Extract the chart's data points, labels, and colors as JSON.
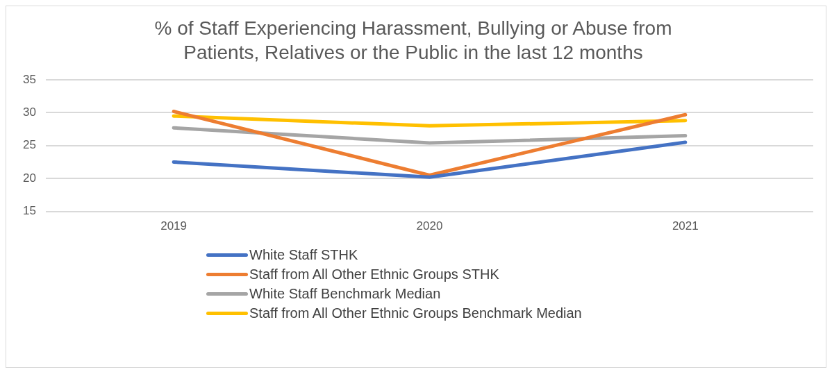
{
  "chart_data": {
    "type": "line",
    "title": "% of Staff Experiencing Harassment, Bullying or Abuse from Patients, Relatives or the Public in the last 12 months",
    "categories": [
      "2019",
      "2020",
      "2021"
    ],
    "series": [
      {
        "name": "White Staff STHK",
        "color": "#4472c4",
        "values": [
          22.5,
          20.2,
          25.5
        ]
      },
      {
        "name": "Staff from All Other Ethnic Groups STHK",
        "color": "#ed7d31",
        "values": [
          30.2,
          20.5,
          29.7
        ]
      },
      {
        "name": "White Staff Benchmark Median",
        "color": "#a5a5a5",
        "values": [
          27.7,
          25.4,
          26.5
        ]
      },
      {
        "name": "Staff from All Other Ethnic Groups  Benchmark Median",
        "color": "#ffc000",
        "values": [
          29.5,
          28.0,
          28.8
        ]
      }
    ],
    "ylim": [
      15,
      35
    ],
    "yticks": [
      15,
      20,
      25,
      30,
      35
    ],
    "grid": "y",
    "legend": "bottom",
    "marker": "none",
    "line_style": "solid"
  }
}
